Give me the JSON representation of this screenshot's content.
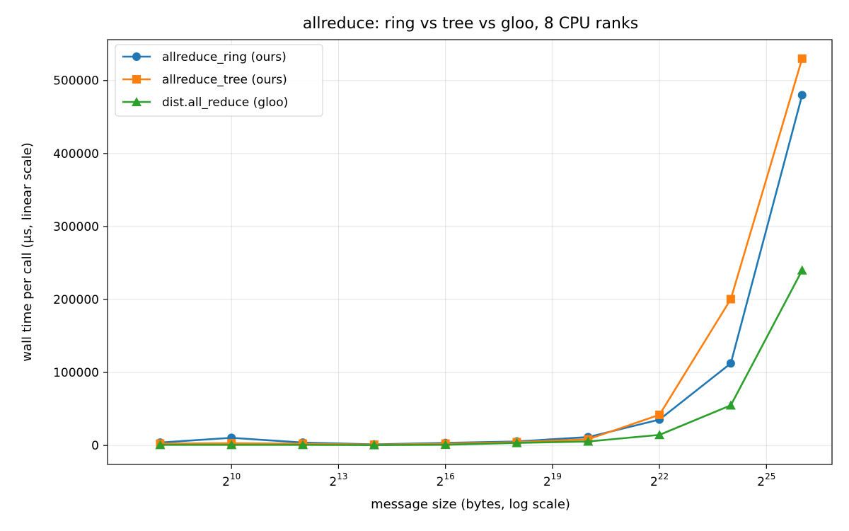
{
  "chart_data": {
    "type": "line",
    "title": "allreduce: ring vs tree vs gloo, 8 CPU ranks",
    "xlabel": "message size (bytes, log scale)",
    "ylabel": "wall time per call (μs, linear scale)",
    "x_scale": "log2",
    "x_ticks": [
      {
        "base": "2",
        "exp": "10",
        "value": 1024
      },
      {
        "base": "2",
        "exp": "13",
        "value": 8192
      },
      {
        "base": "2",
        "exp": "16",
        "value": 65536
      },
      {
        "base": "2",
        "exp": "19",
        "value": 524288
      },
      {
        "base": "2",
        "exp": "22",
        "value": 4194304
      },
      {
        "base": "2",
        "exp": "25",
        "value": 33554432
      }
    ],
    "y_ticks": [
      "0",
      "100000",
      "200000",
      "300000",
      "400000",
      "500000"
    ],
    "xlim": [
      92,
      120000000
    ],
    "ylim": [
      -26000,
      556000
    ],
    "grid": true,
    "legend_position": "top-left",
    "x": [
      256,
      1024,
      4096,
      16384,
      65536,
      262144,
      1048576,
      4194304,
      16777216,
      67108864
    ],
    "series": [
      {
        "name": "allreduce_ring (ours)",
        "color": "#1f77b4",
        "marker": "circle",
        "values": [
          4000,
          10500,
          4000,
          1500,
          3500,
          5500,
          11500,
          35500,
          112500,
          480000
        ]
      },
      {
        "name": "allreduce_tree (ours)",
        "color": "#ff7f0e",
        "marker": "square",
        "values": [
          2500,
          3000,
          2500,
          1000,
          2500,
          4500,
          8500,
          42000,
          200500,
          530000
        ]
      },
      {
        "name": "dist.all_reduce (gloo)",
        "color": "#2ca02c",
        "marker": "triangle",
        "values": [
          800,
          800,
          800,
          500,
          1000,
          3500,
          5500,
          14500,
          55000,
          240000
        ]
      }
    ]
  }
}
